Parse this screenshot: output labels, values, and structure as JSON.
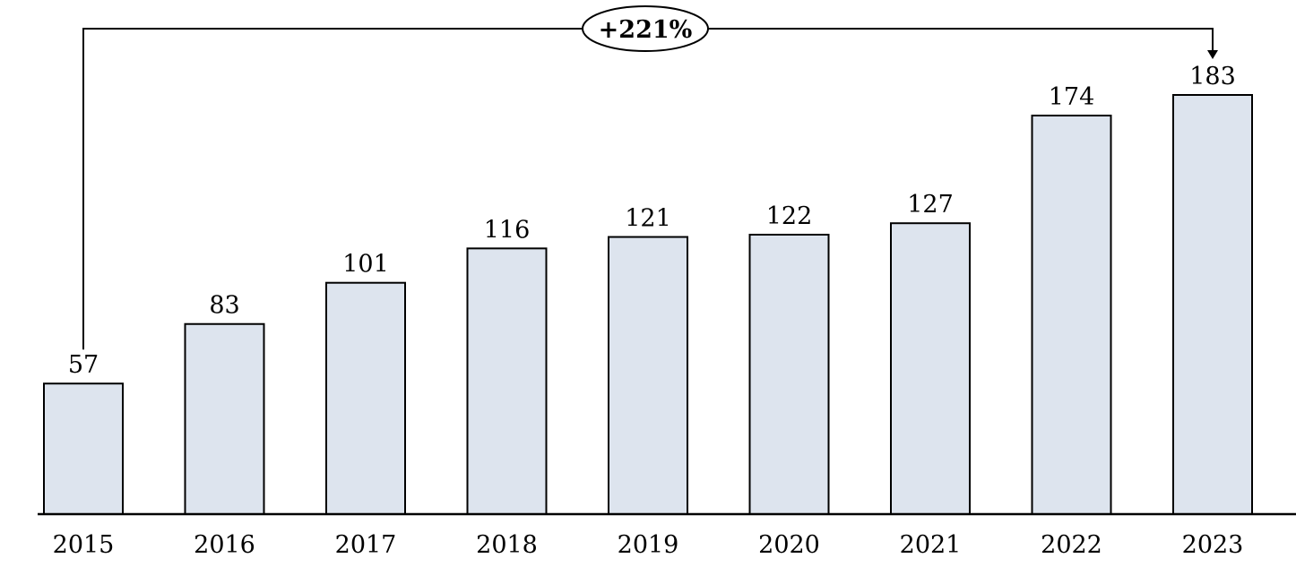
{
  "chart_data": {
    "type": "bar",
    "title": "",
    "xlabel": "",
    "ylabel": "",
    "categories": [
      "2015",
      "2016",
      "2017",
      "2018",
      "2019",
      "2020",
      "2021",
      "2022",
      "2023"
    ],
    "values": [
      57,
      83,
      101,
      116,
      121,
      122,
      127,
      174,
      183
    ],
    "ylim": [
      0,
      190
    ],
    "grid": false,
    "bar_color": "#dde4ee",
    "bar_edge_color": "#000000",
    "annotation": {
      "label": "+221%",
      "from": "2015",
      "to": "2023"
    }
  }
}
